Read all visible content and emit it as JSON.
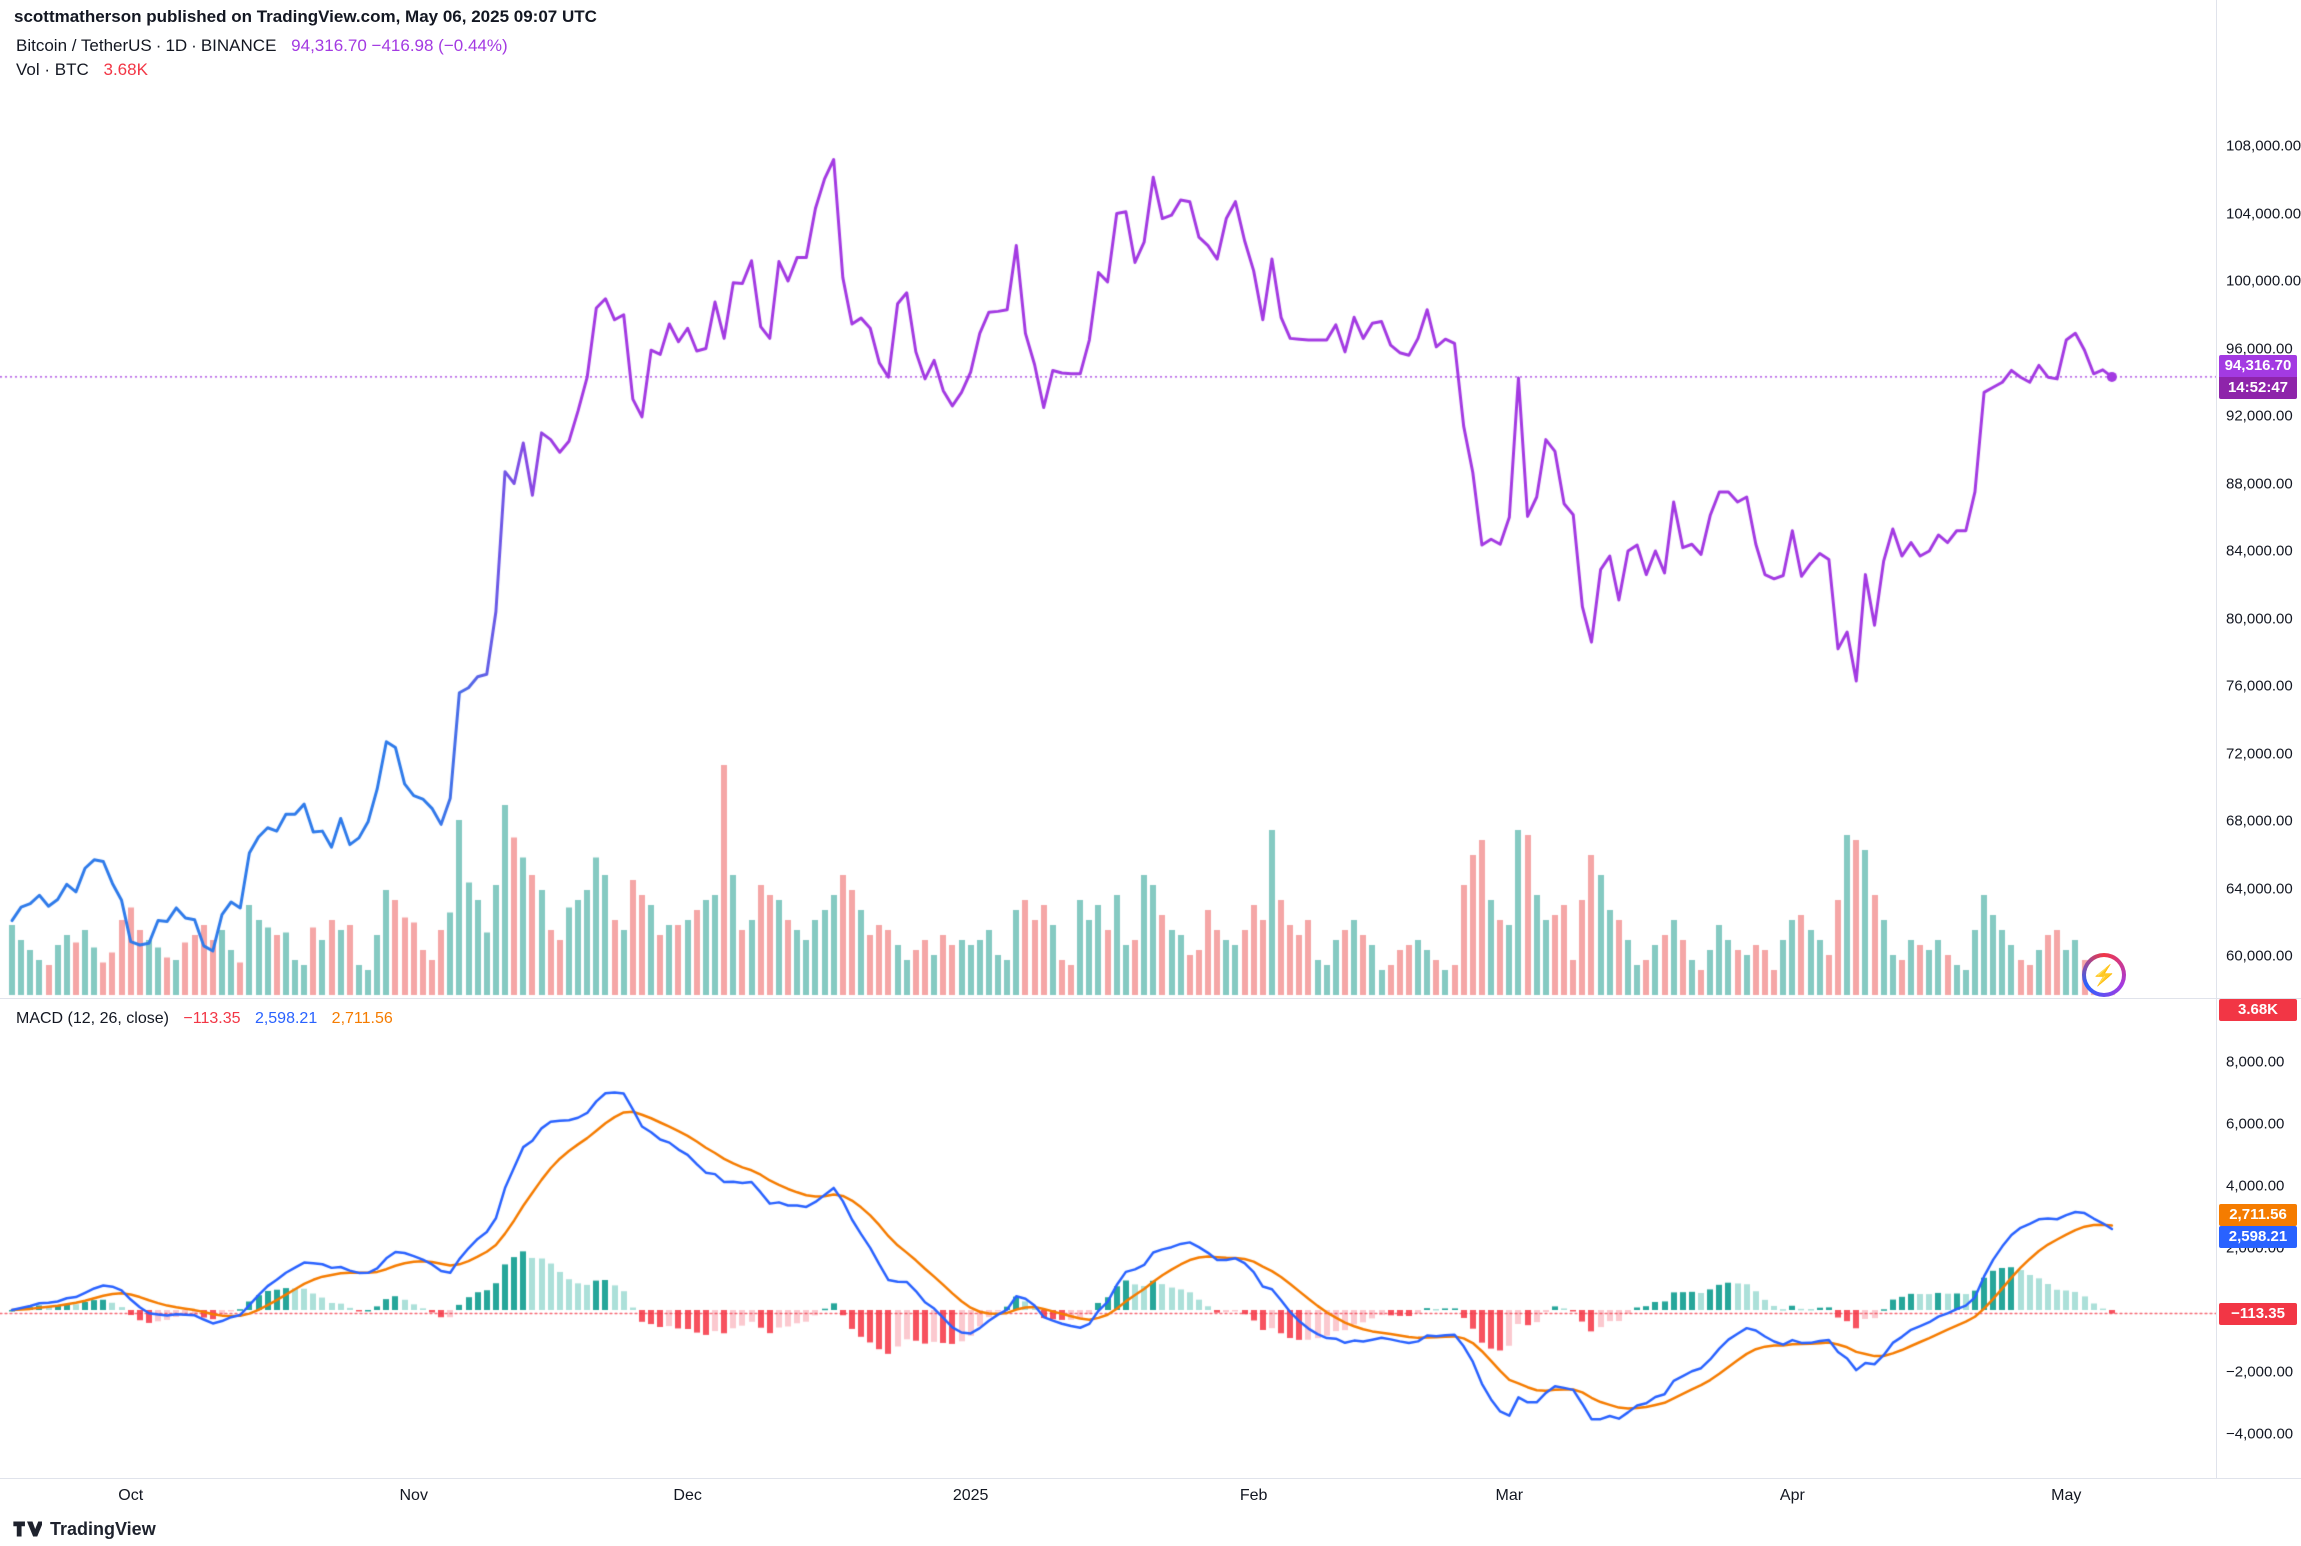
{
  "header": {
    "publish_line": "scottmatherson published on TradingView.com, May 06, 2025 09:07 UTC"
  },
  "legend": {
    "symbol": "Bitcoin / TetherUS",
    "separator": "·",
    "interval": "1D",
    "exchange": "BINANCE",
    "price": "94,316.70",
    "change": "−416.98 (−0.44%)",
    "vol_label": "Vol · BTC",
    "vol_value": "3.68K"
  },
  "macd_legend": {
    "label": "MACD (12, 26, close)",
    "hist": "−113.35",
    "macd": "2,598.21",
    "signal": "2,711.56"
  },
  "price_axis": {
    "labels": [
      "108,000.00",
      "104,000.00",
      "100,000.00",
      "96,000.00",
      "92,000.00",
      "88,000.00",
      "84,000.00",
      "80,000.00",
      "76,000.00",
      "72,000.00",
      "68,000.00",
      "64,000.00",
      "60,000.00"
    ],
    "badge_price": "94,316.70",
    "badge_countdown": "14:52:47",
    "vol_badge": "3.68K"
  },
  "macd_axis": {
    "labels": [
      "8,000.00",
      "6,000.00",
      "4,000.00",
      "2,000.00",
      "−2,000.00",
      "−4,000.00"
    ],
    "badge_signal": "2,711.56",
    "badge_macd": "2,598.21",
    "badge_hist": "−113.35"
  },
  "time_axis": {
    "ticks": [
      {
        "label": "Oct",
        "day": 13
      },
      {
        "label": "Nov",
        "day": 44
      },
      {
        "label": "Dec",
        "day": 74
      },
      {
        "label": "2025",
        "day": 105
      },
      {
        "label": "Feb",
        "day": 136
      },
      {
        "label": "Mar",
        "day": 164
      },
      {
        "label": "Apr",
        "day": 195
      },
      {
        "label": "May",
        "day": 225
      }
    ]
  },
  "footer": {
    "brand": "TradingView"
  },
  "colors": {
    "line_blue": "#2F7BEA",
    "line_purple": "#A33AE2",
    "countdown_bg": "#8E24AA",
    "vol_up": "#85CAC2",
    "vol_down": "#F5A6A6",
    "macd_line": "#2962FF",
    "signal_line": "#F57C00",
    "hist_pos": "#26A69A",
    "hist_pos_weak": "#ACE0D9",
    "hist_neg": "#F7525F",
    "hist_neg_weak": "#FBC9CF",
    "badge_red": "#F23645",
    "badge_blue": "#2962FF",
    "badge_orange": "#F57C00",
    "axis_text": "#131722"
  },
  "chart_data": {
    "type": "line",
    "title": "Bitcoin / TetherUS · 1D · BINANCE",
    "x_start_date": "2024-09-18",
    "x_end_date": "2025-05-06",
    "price_axis_values": [
      108000,
      104000,
      100000,
      96000,
      92000,
      88000,
      84000,
      80000,
      76000,
      72000,
      68000,
      64000,
      60000
    ],
    "macd_axis_values": [
      8000,
      6000,
      4000,
      2000,
      -2000,
      -4000
    ],
    "price_ylim": [
      57500,
      110500
    ],
    "macd_ylim": [
      -4800,
      8900
    ],
    "current": {
      "price": 94316.7,
      "macd": 2598.21,
      "signal": 2711.56,
      "hist": -113.35,
      "volume_k": 3.68
    },
    "indicator": {
      "type": "MACD",
      "fast": 12,
      "slow": 26,
      "signal": 9,
      "source": "close"
    },
    "closes": [
      62100,
      62900,
      63100,
      63600,
      62950,
      63350,
      64250,
      63800,
      65200,
      65700,
      65600,
      64300,
      63300,
      60850,
      60650,
      60750,
      62100,
      62050,
      62850,
      62250,
      62150,
      60600,
      60300,
      62450,
      63200,
      62850,
      66100,
      67050,
      67600,
      67400,
      68400,
      68400,
      69000,
      67350,
      67400,
      66450,
      68150,
      66600,
      67000,
      67950,
      69900,
      72700,
      72350,
      70200,
      69500,
      69300,
      68750,
      67800,
      69350,
      75600,
      75900,
      76550,
      76700,
      80400,
      88700,
      88000,
      90400,
      87300,
      91000,
      90600,
      89850,
      90500,
      92300,
      94300,
      98400,
      98950,
      97700,
      98000,
      93000,
      91950,
      95900,
      95650,
      97450,
      96400,
      97200,
      95850,
      96000,
      98750,
      96600,
      99900,
      99850,
      101200,
      97300,
      96600,
      101150,
      100000,
      101400,
      101400,
      104300,
      106050,
      107200,
      100200,
      97450,
      97800,
      97200,
      95150,
      94300,
      98650,
      99300,
      95800,
      94200,
      95300,
      93500,
      92600,
      93400,
      94600,
      96900,
      98150,
      98200,
      98300,
      102100,
      96900,
      95050,
      92500,
      94700,
      94550,
      94500,
      94500,
      96500,
      100500,
      99950,
      104000,
      104100,
      101100,
      102300,
      106150,
      103700,
      103900,
      104800,
      104700,
      102600,
      102100,
      101300,
      103700,
      104700,
      102400,
      100600,
      97700,
      101300,
      97850,
      96600,
      96550,
      96500,
      96500,
      96500,
      97400,
      95800,
      97850,
      96600,
      97500,
      97600,
      96200,
      95750,
      95600,
      96600,
      98300,
      96100,
      96550,
      96300,
      91400,
      88650,
      84350,
      84700,
      84400,
      86000,
      94250,
      86050,
      87200,
      90600,
      89900,
      86800,
      86150,
      80700,
      78600,
      82900,
      83700,
      81100,
      84000,
      84350,
      82600,
      84000,
      82700,
      86900,
      84200,
      84400,
      83800,
      86100,
      87500,
      87500,
      86900,
      87200,
      84400,
      82600,
      82350,
      82550,
      85200,
      82500,
      83250,
      83850,
      83500,
      78200,
      79200,
      76300,
      82600,
      79600,
      83400,
      85300,
      83700,
      84500,
      83700,
      84000,
      84950,
      84500,
      85200,
      85200,
      87500,
      93400,
      93700,
      94000,
      94700,
      94300,
      94000,
      95000,
      94300,
      94200,
      96500,
      96900,
      95900,
      94500,
      94733.7,
      94316.7
    ],
    "volumes_k": [
      28,
      22,
      18,
      14,
      12,
      20,
      24,
      21,
      26,
      19,
      13,
      17,
      30,
      35,
      26,
      22,
      19,
      15,
      14,
      21,
      24,
      28,
      22,
      26,
      18,
      13,
      36,
      30,
      27,
      24,
      25,
      14,
      12,
      27,
      22,
      30,
      26,
      28,
      12,
      10,
      24,
      42,
      38,
      31,
      29,
      18,
      14,
      26,
      33,
      70,
      45,
      38,
      25,
      44,
      76,
      63,
      55,
      48,
      42,
      26,
      22,
      35,
      38,
      42,
      55,
      48,
      30,
      26,
      46,
      40,
      36,
      24,
      28,
      28,
      30,
      34,
      38,
      40,
      92,
      48,
      26,
      30,
      44,
      40,
      38,
      30,
      26,
      22,
      30,
      34,
      40,
      48,
      42,
      34,
      24,
      28,
      26,
      20,
      14,
      18,
      22,
      16,
      24,
      20,
      22,
      20,
      22,
      26,
      16,
      14,
      34,
      38,
      30,
      36,
      28,
      14,
      12,
      38,
      30,
      36,
      26,
      40,
      20,
      22,
      48,
      44,
      32,
      26,
      24,
      16,
      18,
      34,
      26,
      22,
      20,
      26,
      36,
      30,
      66,
      38,
      28,
      24,
      30,
      14,
      12,
      22,
      26,
      30,
      24,
      20,
      10,
      12,
      18,
      20,
      22,
      18,
      14,
      10,
      12,
      44,
      56,
      62,
      38,
      30,
      28,
      66,
      64,
      40,
      30,
      32,
      36,
      14,
      38,
      56,
      48,
      34,
      30,
      22,
      12,
      14,
      20,
      24,
      30,
      22,
      14,
      10,
      18,
      28,
      22,
      18,
      16,
      20,
      18,
      10,
      22,
      30,
      32,
      26,
      22,
      16,
      38,
      64,
      62,
      58,
      40,
      30,
      16,
      14,
      22,
      20,
      18,
      22,
      16,
      12,
      10,
      26,
      40,
      32,
      26,
      20,
      14,
      12,
      18,
      24,
      26,
      18,
      22,
      14,
      10,
      12,
      3.68
    ]
  }
}
